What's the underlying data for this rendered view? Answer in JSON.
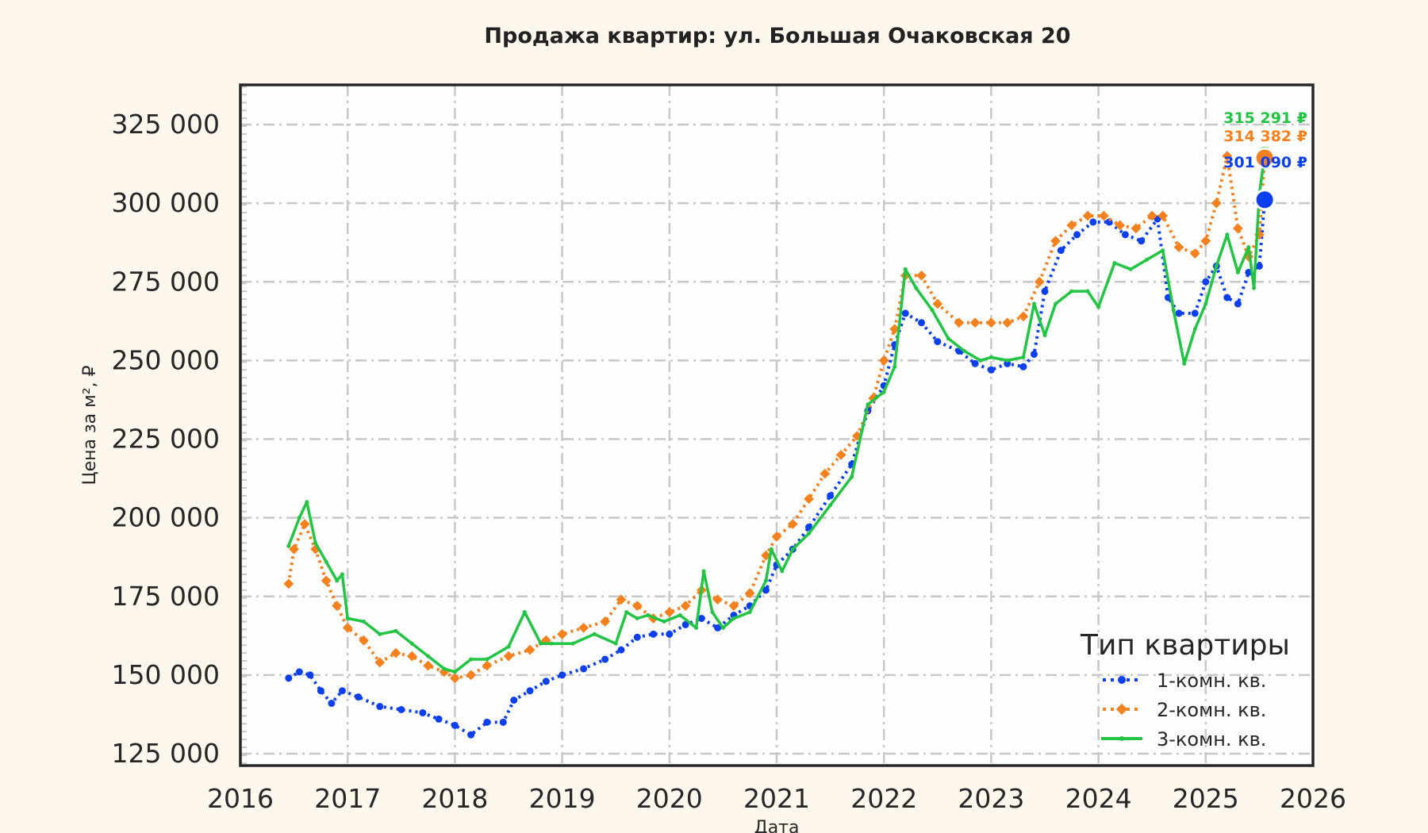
{
  "chart_data": {
    "type": "line",
    "title": "Продажа квартир: ул. Большая Очаковская 20",
    "xlabel": "Дата",
    "ylabel": "Цена за м², ₽",
    "x_ticks": [
      "2016",
      "2017",
      "2018",
      "2019",
      "2020",
      "2021",
      "2022",
      "2023",
      "2024",
      "2025",
      "2026"
    ],
    "y_ticks": [
      "125 000",
      "150 000",
      "175 000",
      "200 000",
      "225 000",
      "250 000",
      "275 000",
      "300 000",
      "325 000"
    ],
    "xlim": [
      2016.0,
      2026.0
    ],
    "ylim": [
      122000,
      338000
    ],
    "grid": true,
    "legend": {
      "title": "Тип квартиры",
      "position": "lower right"
    },
    "series": [
      {
        "name": "1-комн. кв.",
        "color": "#0b3ff0",
        "style": "dotted-circle",
        "x": [
          2016.45,
          2016.55,
          2016.65,
          2016.75,
          2016.85,
          2016.95,
          2017.1,
          2017.3,
          2017.5,
          2017.7,
          2017.85,
          2018.0,
          2018.15,
          2018.3,
          2018.45,
          2018.55,
          2018.7,
          2018.85,
          2019.0,
          2019.2,
          2019.4,
          2019.55,
          2019.7,
          2019.85,
          2020.0,
          2020.15,
          2020.3,
          2020.45,
          2020.6,
          2020.75,
          2020.9,
          2021.0,
          2021.15,
          2021.3,
          2021.5,
          2021.7,
          2021.85,
          2022.0,
          2022.1,
          2022.2,
          2022.35,
          2022.5,
          2022.7,
          2022.85,
          2023.0,
          2023.15,
          2023.3,
          2023.4,
          2023.5,
          2023.65,
          2023.8,
          2023.95,
          2024.1,
          2024.25,
          2024.4,
          2024.55,
          2024.65,
          2024.75,
          2024.9,
          2025.0,
          2025.1,
          2025.2,
          2025.3,
          2025.4,
          2025.5,
          2025.55
        ],
        "values": [
          149000,
          151000,
          150000,
          145000,
          141000,
          145000,
          143000,
          140000,
          139000,
          138000,
          136000,
          134000,
          131000,
          135000,
          135000,
          142000,
          145000,
          148000,
          150000,
          152000,
          155000,
          158000,
          162000,
          163000,
          163000,
          166000,
          168000,
          165000,
          169000,
          172000,
          177000,
          185000,
          190000,
          197000,
          207000,
          217000,
          234000,
          242000,
          255000,
          265000,
          262000,
          256000,
          253000,
          249000,
          247000,
          249000,
          248000,
          252000,
          272000,
          285000,
          290000,
          294000,
          294000,
          290000,
          288000,
          295000,
          270000,
          265000,
          265000,
          275000,
          280000,
          270000,
          268000,
          278000,
          280000,
          301090
        ]
      },
      {
        "name": "2-комн. кв.",
        "color": "#f5811e",
        "style": "dotted-diamond",
        "x": [
          2016.45,
          2016.5,
          2016.6,
          2016.7,
          2016.8,
          2016.9,
          2017.0,
          2017.15,
          2017.3,
          2017.45,
          2017.6,
          2017.75,
          2017.9,
          2018.0,
          2018.15,
          2018.3,
          2018.5,
          2018.7,
          2018.85,
          2019.0,
          2019.2,
          2019.4,
          2019.55,
          2019.7,
          2019.85,
          2020.0,
          2020.15,
          2020.3,
          2020.45,
          2020.6,
          2020.75,
          2020.9,
          2021.0,
          2021.15,
          2021.3,
          2021.45,
          2021.6,
          2021.75,
          2021.9,
          2022.0,
          2022.1,
          2022.2,
          2022.35,
          2022.5,
          2022.7,
          2022.85,
          2023.0,
          2023.15,
          2023.3,
          2023.45,
          2023.6,
          2023.75,
          2023.9,
          2024.05,
          2024.2,
          2024.35,
          2024.5,
          2024.6,
          2024.75,
          2024.9,
          2025.0,
          2025.1,
          2025.2,
          2025.3,
          2025.4,
          2025.5,
          2025.55
        ],
        "values": [
          179000,
          190000,
          198000,
          190000,
          180000,
          172000,
          165000,
          161000,
          154000,
          157000,
          156000,
          153000,
          151000,
          149000,
          150000,
          153000,
          156000,
          158000,
          161000,
          163000,
          165000,
          167000,
          174000,
          172000,
          168000,
          170000,
          172000,
          177000,
          174000,
          172000,
          176000,
          188000,
          194000,
          198000,
          206000,
          214000,
          220000,
          226000,
          238000,
          250000,
          260000,
          277000,
          277000,
          268000,
          262000,
          262000,
          262000,
          262000,
          264000,
          275000,
          288000,
          293000,
          296000,
          296000,
          293000,
          292000,
          296000,
          296000,
          286000,
          284000,
          288000,
          300000,
          315000,
          292000,
          283000,
          290000,
          314382
        ]
      },
      {
        "name": "3-комн. кв.",
        "color": "#22c444",
        "style": "solid-small-marker",
        "x": [
          2016.45,
          2016.55,
          2016.62,
          2016.7,
          2016.8,
          2016.9,
          2016.95,
          2017.0,
          2017.15,
          2017.3,
          2017.45,
          2017.6,
          2017.75,
          2017.9,
          2018.0,
          2018.15,
          2018.3,
          2018.5,
          2018.65,
          2018.8,
          2018.9,
          2019.1,
          2019.3,
          2019.5,
          2019.6,
          2019.7,
          2019.8,
          2019.95,
          2020.1,
          2020.25,
          2020.32,
          2020.4,
          2020.5,
          2020.6,
          2020.75,
          2020.9,
          2020.95,
          2021.05,
          2021.15,
          2021.3,
          2021.5,
          2021.7,
          2021.85,
          2022.0,
          2022.1,
          2022.2,
          2022.3,
          2022.45,
          2022.6,
          2022.75,
          2022.9,
          2023.0,
          2023.15,
          2023.3,
          2023.4,
          2023.5,
          2023.6,
          2023.75,
          2023.9,
          2024.0,
          2024.15,
          2024.3,
          2024.45,
          2024.6,
          2024.7,
          2024.8,
          2024.9,
          2025.0,
          2025.1,
          2025.2,
          2025.3,
          2025.4,
          2025.45,
          2025.5,
          2025.55
        ],
        "values": [
          191000,
          200000,
          205000,
          192000,
          186000,
          180000,
          182000,
          168000,
          167000,
          163000,
          164000,
          160000,
          156000,
          152000,
          151000,
          155000,
          155000,
          159000,
          170000,
          160000,
          160000,
          160000,
          163000,
          160000,
          170000,
          168000,
          169000,
          167000,
          169000,
          165000,
          183000,
          170000,
          165000,
          168000,
          170000,
          180000,
          190000,
          183000,
          190000,
          195000,
          204000,
          213000,
          236000,
          240000,
          248000,
          279000,
          273000,
          266000,
          257000,
          253000,
          250000,
          251000,
          250000,
          251000,
          268000,
          258000,
          268000,
          272000,
          272000,
          267000,
          281000,
          279000,
          282000,
          285000,
          266000,
          249000,
          260000,
          268000,
          280000,
          290000,
          278000,
          286000,
          273000,
          303000,
          315291
        ]
      }
    ],
    "end_labels": [
      {
        "series": "3-комн. кв.",
        "text": "315 291 ₽",
        "color": "#22c444"
      },
      {
        "series": "2-комн. кв.",
        "text": "314 382 ₽",
        "color": "#f5811e"
      },
      {
        "series": "1-комн. кв.",
        "text": "301 090 ₽",
        "color": "#0b3ff0"
      }
    ]
  }
}
